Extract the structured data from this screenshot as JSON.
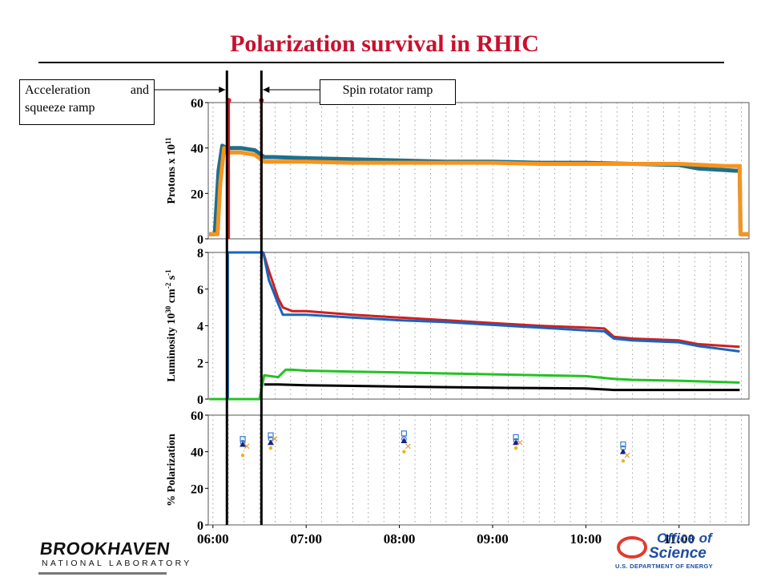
{
  "title": "Polarization survival in RHIC",
  "callouts": {
    "accel_line1": "Acceleration and",
    "accel_line2": "squeeze ramp",
    "spin": "Spin rotator ramp"
  },
  "logos": {
    "bnl_name": "BROOKHAVEN",
    "bnl_sub": "NATIONAL LABORATORY",
    "doe_line1": "Office of",
    "doe_line2": "Science",
    "doe_line3": "U.S. DEPARTMENT OF ENERGY"
  },
  "colors": {
    "title": "#c8102e",
    "blue_ring": "#1565c0",
    "teal": "#1f6f8b",
    "orange": "#f7941d",
    "red": "#d21f1f",
    "green": "#22c322",
    "black": "#000000",
    "grid": "#8a8a8a"
  },
  "chart_data": {
    "type": "line",
    "x_axis": {
      "ticks": [
        "06:00",
        "07:00",
        "08:00",
        "09:00",
        "10:00",
        "11:00"
      ],
      "tick_hours": [
        6.0,
        7.0,
        8.0,
        9.0,
        10.0,
        11.0
      ],
      "range_hours": [
        5.95,
        11.75
      ],
      "grid_step_hours": 0.1667
    },
    "markers": {
      "accel_and_squeeze_ramp_hours": 6.15,
      "spin_rotator_ramp_hours": 6.52
    },
    "panels": [
      {
        "ylabel": "Protons x 10^11",
        "ylim": [
          0,
          60
        ],
        "yticks": [
          0,
          20,
          40,
          60
        ],
        "series": [
          {
            "color_key": "teal",
            "x": [
              5.96,
              6.02,
              6.06,
              6.1,
              6.15,
              6.3,
              6.45,
              6.55,
              6.65,
              7.0,
              7.5,
              8.0,
              8.5,
              9.0,
              9.5,
              10.0,
              10.5,
              11.0,
              11.2,
              11.6,
              11.65,
              11.66,
              11.75
            ],
            "y": [
              2,
              2,
              30,
              41,
              40,
              40,
              39,
              36,
              36,
              35.5,
              35,
              34.5,
              34,
              34,
              33.5,
              33.5,
              33,
              32.5,
              31,
              30,
              30,
              2,
              2
            ]
          },
          {
            "color_key": "orange",
            "x": [
              5.96,
              6.05,
              6.08,
              6.12,
              6.15,
              6.3,
              6.45,
              6.55,
              6.65,
              7.0,
              7.5,
              8.0,
              8.5,
              9.0,
              9.5,
              10.0,
              10.5,
              11.0,
              11.5,
              11.65,
              11.66,
              11.75
            ],
            "y": [
              2,
              2,
              25,
              40,
              38,
              38,
              37,
              34,
              34,
              34,
              33.5,
              33.5,
              33.5,
              33.5,
              33,
              33,
              33,
              33,
              32,
              32,
              2,
              2
            ]
          }
        ],
        "spikes": [
          {
            "color_key": "red",
            "x": 6.17,
            "y_top": 61
          },
          {
            "color_key": "red",
            "x": 6.52,
            "y_top": 61
          }
        ]
      },
      {
        "ylabel": "Luminosity 10^30 cm^-2 s^-1",
        "ylim": [
          0,
          8
        ],
        "yticks": [
          0,
          2,
          4,
          6,
          8
        ],
        "series": [
          {
            "color_key": "red",
            "x": [
              6.54,
              6.6,
              6.7,
              6.75,
              6.85,
              7.0,
              7.5,
              8.0,
              8.5,
              9.0,
              9.5,
              10.0,
              10.2,
              10.3,
              10.5,
              11.0,
              11.1,
              11.2,
              11.65
            ],
            "y": [
              8,
              7,
              5.5,
              5,
              4.8,
              4.8,
              4.6,
              4.45,
              4.3,
              4.15,
              4,
              3.9,
              3.85,
              3.4,
              3.3,
              3.2,
              3.1,
              3.0,
              2.85
            ]
          },
          {
            "color_key": "blue_ring",
            "x": [
              6.16,
              6.16,
              6.54,
              6.6,
              6.7,
              6.75,
              6.85,
              7.0,
              7.5,
              8.0,
              8.5,
              9.0,
              9.5,
              10.0,
              10.2,
              10.3,
              10.5,
              11.0,
              11.1,
              11.2,
              11.65
            ],
            "y": [
              0,
              8,
              8,
              6.5,
              5.2,
              4.6,
              4.6,
              4.6,
              4.45,
              4.3,
              4.2,
              4.05,
              3.9,
              3.75,
              3.7,
              3.3,
              3.2,
              3.1,
              3.0,
              2.9,
              2.6
            ]
          },
          {
            "color_key": "green",
            "x": [
              5.96,
              6.5,
              6.55,
              6.7,
              6.78,
              6.85,
              7.0,
              7.5,
              8.0,
              8.5,
              9.0,
              9.5,
              10.0,
              10.3,
              10.5,
              11.0,
              11.65
            ],
            "y": [
              0,
              0,
              1.3,
              1.2,
              1.6,
              1.6,
              1.55,
              1.5,
              1.45,
              1.4,
              1.35,
              1.3,
              1.25,
              1.1,
              1.05,
              1.0,
              0.9
            ]
          },
          {
            "color_key": "black",
            "x": [
              6.55,
              6.7,
              7.0,
              7.5,
              8.0,
              8.5,
              9.0,
              9.5,
              10.0,
              10.3,
              10.5,
              11.0,
              11.65
            ],
            "y": [
              0.8,
              0.8,
              0.75,
              0.72,
              0.68,
              0.65,
              0.62,
              0.6,
              0.58,
              0.5,
              0.5,
              0.5,
              0.5
            ]
          }
        ]
      },
      {
        "ylabel": "% Polarization",
        "ylim": [
          0,
          60
        ],
        "yticks": [
          0,
          20,
          40,
          60
        ],
        "points": [
          {
            "x": 6.32,
            "square": 47,
            "circle": 45,
            "triangle": 44,
            "cross": 43,
            "star": 38
          },
          {
            "x": 6.62,
            "square": 49,
            "circle": 47,
            "triangle": 45,
            "cross": 47,
            "star": 42
          },
          {
            "x": 8.05,
            "square": 50,
            "circle": 47,
            "triangle": 46,
            "cross": 43,
            "star": 40
          },
          {
            "x": 9.25,
            "square": 48,
            "circle": 46,
            "triangle": 45,
            "cross": 45,
            "star": 42
          },
          {
            "x": 10.4,
            "square": 44,
            "circle": 42,
            "triangle": 40,
            "cross": 38,
            "star": 35
          }
        ]
      }
    ]
  }
}
